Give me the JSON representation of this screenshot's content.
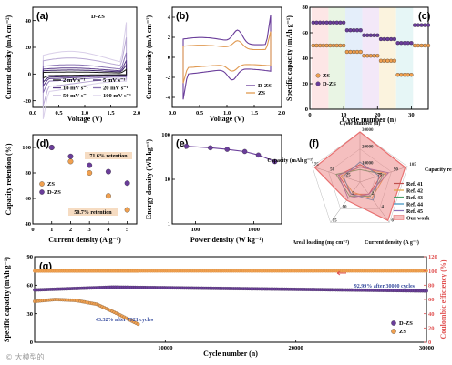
{
  "watermark": "© 大模型的",
  "chart_data": [
    {
      "panel": "(a)",
      "type": "line",
      "series_label": "D-ZS",
      "xlabel": "Voltage (V)",
      "ylabel": "Current density (mA cm⁻²)",
      "xlim": [
        0,
        2
      ],
      "ylim": [
        -25,
        50
      ],
      "xticks": [
        "0.0",
        "0.5",
        "1.0",
        "1.5",
        "2.0"
      ],
      "yticks": [
        "-20",
        "0",
        "20",
        "40"
      ],
      "legend": [
        "2 mV s⁻¹",
        "5 mV s⁻¹",
        "10 mV s⁻¹",
        "20 mV s⁻¹",
        "50 mV s⁻¹",
        "100 mV s⁻¹"
      ],
      "loops": [
        {
          "scan_rate": 2,
          "amp": 3
        },
        {
          "scan_rate": 5,
          "amp": 6
        },
        {
          "scan_rate": 10,
          "amp": 9
        },
        {
          "scan_rate": 20,
          "amp": 14
        },
        {
          "scan_rate": 50,
          "amp": 24
        },
        {
          "scan_rate": 100,
          "amp": 34
        }
      ]
    },
    {
      "panel": "(b)",
      "type": "line",
      "xlabel": "Voltage (V)",
      "ylabel": "Current density (mA cm⁻²)",
      "xlim": [
        0,
        2
      ],
      "ylim": [
        -5,
        5
      ],
      "xticks": [
        "0.0",
        "0.5",
        "1.0",
        "1.5",
        "2.0"
      ],
      "yticks": [
        "-4",
        "-2",
        "0",
        "2",
        "4"
      ],
      "series": [
        {
          "name": "D-ZS",
          "color": "#6a3d9a",
          "amp": 3.6
        },
        {
          "name": "ZS",
          "color": "#e09a52",
          "amp": 2.2
        }
      ]
    },
    {
      "panel": "(c)",
      "type": "scatter",
      "xlabel": "Cycle number (n)",
      "ylabel": "Specific capacity (mAh g⁻¹)",
      "xlim": [
        0,
        35
      ],
      "ylim": [
        0,
        80
      ],
      "xticks": [
        "0",
        "10",
        "20",
        "30"
      ],
      "yticks": [
        "0",
        "20",
        "40",
        "60",
        "80"
      ],
      "series": [
        {
          "name": "ZS",
          "color": "#f0a050",
          "values": [
            50,
            50,
            50,
            50,
            50,
            50,
            50,
            50,
            50,
            50,
            45,
            45,
            45,
            45,
            45,
            42,
            42,
            42,
            42,
            42,
            38,
            38,
            38,
            38,
            38,
            27,
            27,
            27,
            27,
            27,
            50,
            50,
            50,
            50,
            50
          ]
        },
        {
          "name": "D-ZS",
          "color": "#6a3d9a",
          "values": [
            68,
            68,
            68,
            68,
            68,
            68,
            68,
            68,
            68,
            68,
            62,
            62,
            62,
            62,
            62,
            58,
            58,
            58,
            58,
            58,
            55,
            55,
            55,
            55,
            55,
            52,
            52,
            52,
            52,
            52,
            66,
            66,
            66,
            66,
            66
          ]
        }
      ]
    },
    {
      "panel": "(d)",
      "type": "scatter",
      "xlabel": "Current density (A g⁻¹)",
      "ylabel": "Capacity retention (%)",
      "xlim": [
        0,
        5.5
      ],
      "ylim": [
        40,
        110
      ],
      "xticks": [
        "0",
        "1",
        "2",
        "3",
        "4",
        "5"
      ],
      "yticks": [
        "40",
        "60",
        "80",
        "100"
      ],
      "annotations": [
        "71.6% retention",
        "50.7% retention"
      ],
      "series": [
        {
          "name": "ZS",
          "color": "#f0a050",
          "x": [
            1,
            2,
            3,
            4,
            5
          ],
          "values": [
            100,
            89,
            80,
            62,
            51
          ]
        },
        {
          "name": "D-ZS",
          "color": "#6a3d9a",
          "x": [
            1,
            2,
            3,
            4,
            5
          ],
          "values": [
            100,
            93,
            86,
            81,
            72
          ]
        }
      ]
    },
    {
      "panel": "(e)",
      "type": "line",
      "xlabel": "Power density (W kg⁻¹)",
      "ylabel": "Energy density (Wh kg⁻¹)",
      "log_x": true,
      "log_y": true,
      "xlim": [
        40,
        3000
      ],
      "ylim": [
        1,
        100
      ],
      "xticks": [
        "100",
        "1000"
      ],
      "yticks": [
        "1",
        "10",
        "100"
      ],
      "x": [
        70,
        180,
        350,
        700,
        1200,
        2300
      ],
      "values": [
        55,
        51,
        47,
        42,
        35,
        25
      ],
      "color": "#6a3d9a"
    },
    {
      "panel": "(f)",
      "type": "radar",
      "axes": [
        "Cycle number (n)",
        "Capacity retention (%)",
        "Current density (A g⁻¹)",
        "Areal loading (mg cm⁻²)",
        "Capacity (mAh g⁻¹)"
      ],
      "axis_ticks": [
        [
          "10000",
          "20000",
          "30000"
        ],
        [
          "75",
          "90",
          "105"
        ],
        [
          "2",
          "4",
          "6"
        ],
        [
          "5",
          "10",
          "15"
        ],
        [
          "25",
          "50",
          "75"
        ]
      ],
      "series": [
        {
          "name": "Ref. 41",
          "color": "#c0504d"
        },
        {
          "name": "Ref. 42",
          "color": "#e0a040"
        },
        {
          "name": "Ref. 43",
          "color": "#4ba06a"
        },
        {
          "name": "Ref. 44",
          "color": "#3a8fbf"
        },
        {
          "name": "Ref. 45",
          "color": "#8a6fb4"
        },
        {
          "name": "Our work",
          "color": "#e87070"
        }
      ]
    },
    {
      "panel": "(g)",
      "type": "scatter",
      "xlabel": "Cycle number (n)",
      "ylabel_left": "Specific capacity (mAh g⁻¹)",
      "ylabel_right": "Coulombic efficiency (%)",
      "xlim": [
        0,
        30000
      ],
      "ylim_left": [
        0,
        90
      ],
      "ylim_right": [
        0,
        120
      ],
      "xticks": [
        "10000",
        "20000",
        "30000"
      ],
      "yticks_left": [
        "0",
        "30",
        "60",
        "90"
      ],
      "yticks_right": [
        "0",
        "20",
        "40",
        "60",
        "80",
        "100",
        "120"
      ],
      "annotations": [
        "92.99% after 30000 cycles",
        "43.32% after 7921 cycles"
      ],
      "series": [
        {
          "name": "D-ZS",
          "color": "#6a3d9a",
          "end_cycle": 30000,
          "capacity": [
            55,
            58,
            57,
            56,
            55,
            54
          ],
          "ce": 100
        },
        {
          "name": "ZS",
          "color": "#f0a050",
          "end_cycle": 7921,
          "capacity": [
            43,
            45,
            44,
            40,
            30,
            19
          ],
          "ce": 100
        }
      ]
    }
  ]
}
